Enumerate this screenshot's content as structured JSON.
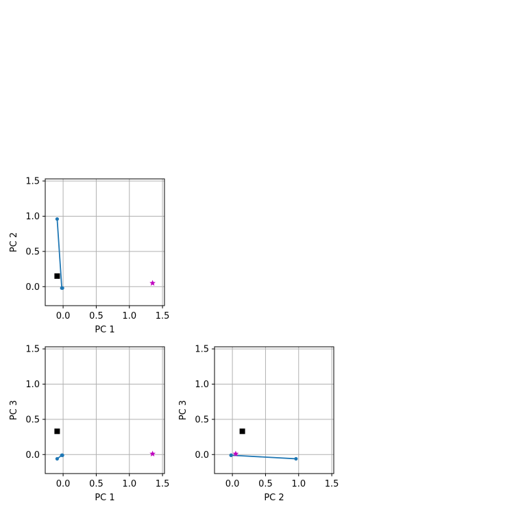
{
  "chart_data": [
    {
      "type": "line",
      "xlabel": "PC 1",
      "ylabel": "PC 2",
      "xlim": [
        -0.27,
        1.53
      ],
      "ylim": [
        -0.27,
        1.53
      ],
      "xticks": [
        0.0,
        0.5,
        1.0,
        1.5
      ],
      "yticks": [
        0.0,
        0.5,
        1.0,
        1.5
      ],
      "xtick_labels": [
        "0.0",
        "0.5",
        "1.0",
        "1.5"
      ],
      "ytick_labels": [
        "0.0",
        "0.5",
        "1.0",
        "1.5"
      ],
      "grid": true,
      "series": [
        {
          "values_x": [
            -0.09,
            -0.02,
            -0.01
          ],
          "values_y": [
            0.96,
            -0.02,
            -0.02
          ],
          "color": "#1f77b4",
          "marker": "dot"
        }
      ],
      "special_points": [
        {
          "x": -0.09,
          "y": 0.15,
          "marker": "square",
          "color": "#000000"
        },
        {
          "x": 1.35,
          "y": 0.05,
          "marker": "star",
          "color": "#bf00bf"
        }
      ]
    },
    {
      "type": "line",
      "xlabel": "PC 1",
      "ylabel": "PC 3",
      "xlim": [
        -0.27,
        1.53
      ],
      "ylim": [
        -0.27,
        1.53
      ],
      "xticks": [
        0.0,
        0.5,
        1.0,
        1.5
      ],
      "yticks": [
        0.0,
        0.5,
        1.0,
        1.5
      ],
      "xtick_labels": [
        "0.0",
        "0.5",
        "1.0",
        "1.5"
      ],
      "ytick_labels": [
        "0.0",
        "0.5",
        "1.0",
        "1.5"
      ],
      "grid": true,
      "series": [
        {
          "values_x": [
            -0.09,
            -0.02,
            -0.01
          ],
          "values_y": [
            -0.06,
            -0.01,
            -0.01
          ],
          "color": "#1f77b4",
          "marker": "dot"
        }
      ],
      "special_points": [
        {
          "x": -0.09,
          "y": 0.33,
          "marker": "square",
          "color": "#000000"
        },
        {
          "x": 1.35,
          "y": 0.01,
          "marker": "star",
          "color": "#bf00bf"
        }
      ]
    },
    {
      "type": "line",
      "xlabel": "PC 2",
      "ylabel": "PC 3",
      "xlim": [
        -0.27,
        1.53
      ],
      "ylim": [
        -0.27,
        1.53
      ],
      "xticks": [
        0.0,
        0.5,
        1.0,
        1.5
      ],
      "yticks": [
        0.0,
        0.5,
        1.0,
        1.5
      ],
      "xtick_labels": [
        "0.0",
        "0.5",
        "1.0",
        "1.5"
      ],
      "ytick_labels": [
        "0.0",
        "0.5",
        "1.0",
        "1.5"
      ],
      "grid": true,
      "series": [
        {
          "values_x": [
            0.96,
            -0.02,
            -0.02
          ],
          "values_y": [
            -0.06,
            -0.01,
            -0.01
          ],
          "color": "#1f77b4",
          "marker": "dot"
        }
      ],
      "special_points": [
        {
          "x": 0.15,
          "y": 0.33,
          "marker": "square",
          "color": "#000000"
        },
        {
          "x": 0.05,
          "y": 0.01,
          "marker": "star",
          "color": "#bf00bf"
        }
      ]
    }
  ]
}
